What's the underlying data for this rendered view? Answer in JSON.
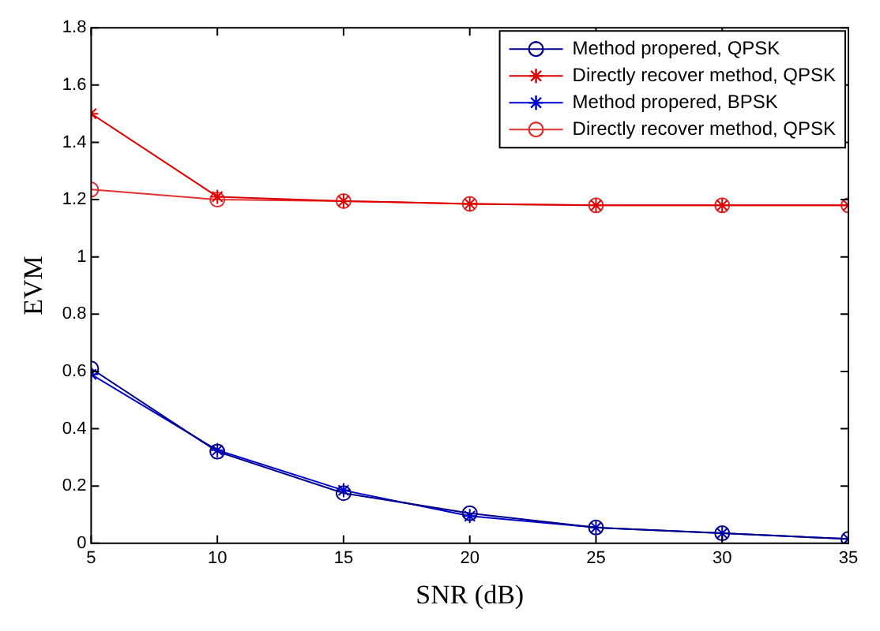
{
  "chart_data": {
    "type": "line",
    "xlabel": "SNR (dB)",
    "ylabel": "EVM",
    "x": [
      5,
      10,
      15,
      20,
      25,
      30,
      35
    ],
    "series": [
      {
        "name": "Method propered, QPSK",
        "color": "#00008b",
        "marker": "circle",
        "values": [
          0.61,
          0.32,
          0.175,
          0.105,
          0.055,
          0.035,
          0.015
        ]
      },
      {
        "name": "Directly recover method, QPSK",
        "color": "#e00000",
        "marker": "cross",
        "values": [
          1.5,
          1.21,
          1.195,
          1.185,
          1.18,
          1.18,
          1.18
        ]
      },
      {
        "name": "Method propered, BPSK",
        "color": "#0000cd",
        "marker": "cross",
        "values": [
          0.59,
          0.325,
          0.185,
          0.095,
          0.055,
          0.035,
          0.015
        ]
      },
      {
        "name": "Directly recover method, QPSK",
        "color": "#e03030",
        "marker": "circle",
        "values": [
          1.235,
          1.2,
          1.195,
          1.185,
          1.18,
          1.18,
          1.18
        ]
      }
    ],
    "xlim": [
      5,
      35
    ],
    "xticks": [
      5,
      10,
      15,
      20,
      25,
      30,
      35
    ],
    "ylim": [
      0,
      1.8
    ],
    "yticks": [
      0,
      0.2,
      0.4,
      0.6,
      0.8,
      1,
      1.2,
      1.4,
      1.6,
      1.8
    ],
    "grid": false,
    "legend": "top right",
    "line_style": "solid"
  }
}
